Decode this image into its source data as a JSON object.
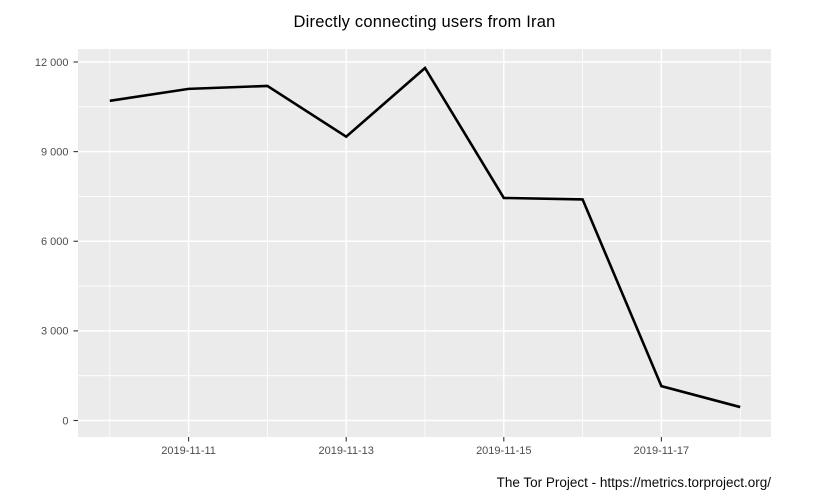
{
  "header": {
    "title": "Directly connecting users from Iran"
  },
  "footer": {
    "credit": "The Tor Project - https://metrics.torproject.org/"
  },
  "colors": {
    "background": "#ffffff",
    "panel_bg": "#ebebeb",
    "grid": "#ffffff",
    "line": "#000000",
    "axis_text": "#4d4d4d",
    "tick": "#333333",
    "title_text": "#000000"
  },
  "chart_data": {
    "type": "line",
    "title": "Directly connecting users from Iran",
    "caption": "The Tor Project - https://metrics.torproject.org/",
    "x": [
      "2019-11-10",
      "2019-11-11",
      "2019-11-12",
      "2019-11-13",
      "2019-11-14",
      "2019-11-15",
      "2019-11-16",
      "2019-11-17",
      "2019-11-18"
    ],
    "values": [
      10700,
      11100,
      11200,
      9500,
      11800,
      7450,
      7400,
      1150,
      450
    ],
    "xlabel": "",
    "ylabel": "",
    "ylim": [
      0,
      12000
    ],
    "y_major_ticks": [
      0,
      3000,
      6000,
      9000,
      12000
    ],
    "y_tick_labels": [
      "0",
      "3 000",
      "6 000",
      "9 000",
      "12 000"
    ],
    "y_minor_ticks": [
      1500,
      4500,
      7500,
      10500
    ],
    "x_major_indices": [
      1,
      3,
      5,
      7
    ],
    "x_tick_labels": [
      "2019-11-11",
      "2019-11-13",
      "2019-11-15",
      "2019-11-17"
    ],
    "grid": true,
    "legend": "none"
  }
}
